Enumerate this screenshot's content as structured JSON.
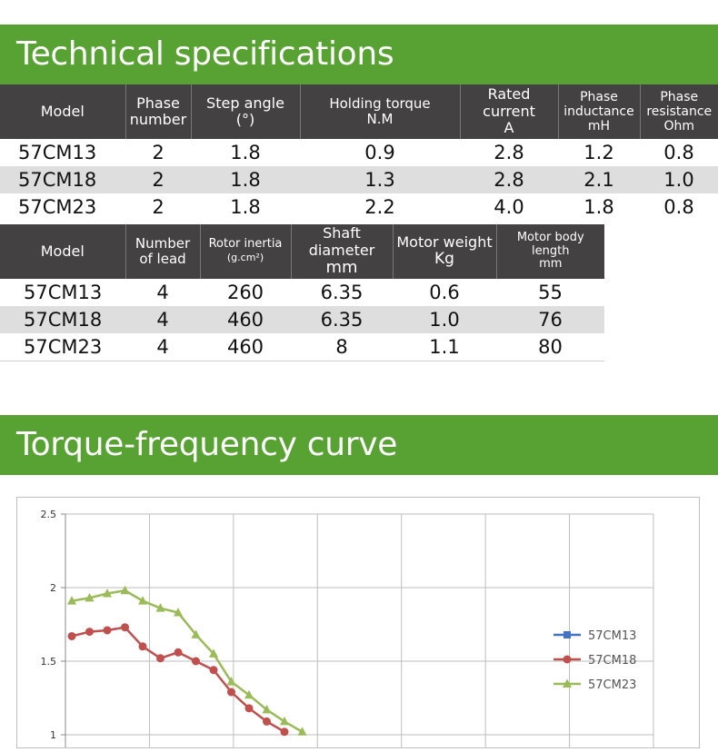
{
  "sections": {
    "specs_title": "Technical specifications",
    "curve_title": "Torque-frequency curve"
  },
  "table1": {
    "headers": [
      [
        "Model"
      ],
      [
        "Phase",
        "number"
      ],
      [
        "Step angle",
        "(°)"
      ],
      [
        "Holding torque",
        "N.M"
      ],
      [
        "Rated current",
        "A"
      ],
      [
        "Phase",
        "inductance",
        "mH"
      ],
      [
        "Phase",
        "resistance",
        "Ohm"
      ]
    ],
    "rows": [
      [
        "57CM13",
        "2",
        "1.8",
        "0.9",
        "2.8",
        "1.2",
        "0.8"
      ],
      [
        "57CM18",
        "2",
        "1.8",
        "1.3",
        "2.8",
        "2.1",
        "1.0"
      ],
      [
        "57CM23",
        "2",
        "1.8",
        "2.2",
        "4.0",
        "1.8",
        "0.8"
      ]
    ]
  },
  "table2": {
    "headers": [
      [
        "Model"
      ],
      [
        "Number",
        "of lead"
      ],
      [
        "Rotor inertia",
        "(g.cm²)"
      ],
      [
        "Shaft diameter",
        "mm"
      ],
      [
        "Motor weight",
        "Kg"
      ],
      [
        "Motor body",
        "length",
        "mm"
      ]
    ],
    "rows": [
      [
        "57CM13",
        "4",
        "260",
        "6.35",
        "0.6",
        "55"
      ],
      [
        "57CM18",
        "4",
        "460",
        "6.35",
        "1.0",
        "76"
      ],
      [
        "57CM23",
        "4",
        "460",
        "8",
        "1.1",
        "80"
      ]
    ]
  },
  "chart_data": {
    "type": "line",
    "ylim": [
      1,
      2.5
    ],
    "y_ticks": [
      "1",
      "1.5",
      "2",
      "2.5"
    ],
    "x_divisions": 7,
    "grid": true,
    "legend_position": "right",
    "series": [
      {
        "name": "57CM13",
        "color": "#4472c4",
        "marker": "square",
        "points": []
      },
      {
        "name": "57CM18",
        "color": "#c0504d",
        "marker": "circle",
        "points": [
          1.67,
          1.7,
          1.71,
          1.73,
          1.6,
          1.52,
          1.56,
          1.5,
          1.44,
          1.29,
          1.18,
          1.09,
          1.02
        ]
      },
      {
        "name": "57CM23",
        "color": "#9bbb59",
        "marker": "triangle",
        "points": [
          1.91,
          1.93,
          1.96,
          1.98,
          1.91,
          1.86,
          1.83,
          1.68,
          1.55,
          1.36,
          1.27,
          1.17,
          1.09,
          1.02
        ]
      }
    ]
  }
}
